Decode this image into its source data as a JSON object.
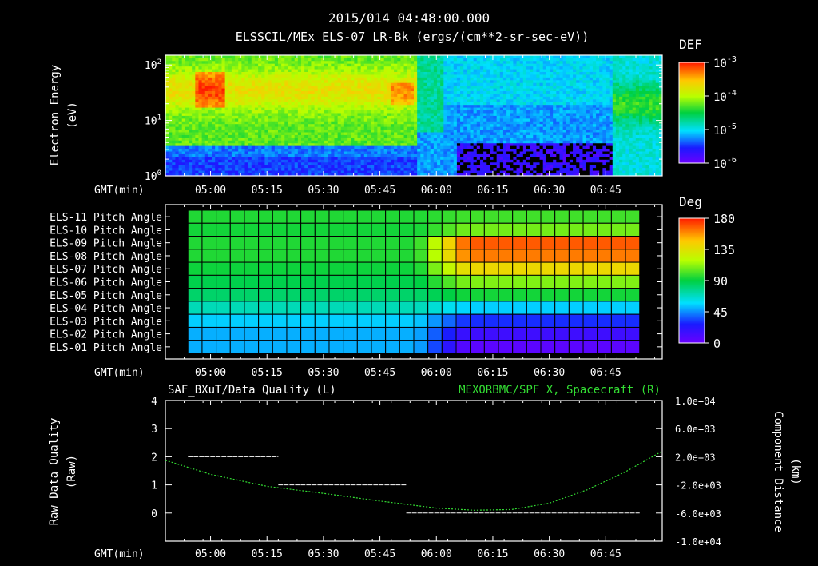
{
  "header": {
    "timestamp": "2015/014 04:48:00.000",
    "title": "ELSSCIL/MEx ELS-07 LR-Bk  (ergs/(cm**2-sr-sec-eV))"
  },
  "time_axis": {
    "label": "GMT(min)",
    "tick_labels": [
      "05:00",
      "05:15",
      "05:30",
      "05:45",
      "06:00",
      "06:15",
      "06:30",
      "06:45"
    ],
    "tick_minutes": [
      300,
      315,
      330,
      345,
      360,
      375,
      390,
      405
    ],
    "range_minutes": [
      288,
      420
    ]
  },
  "chart_data": [
    {
      "type": "heatmap",
      "panel": "spectrogram",
      "ylabel": "Electron Energy (eV)",
      "ylabel_lines": [
        "Electron Energy",
        "(eV)"
      ],
      "yscale": "log",
      "ylim": [
        1,
        150
      ],
      "y_ticks": [
        {
          "base": "10",
          "exp": "0",
          "value": 1
        },
        {
          "base": "10",
          "exp": "1",
          "value": 10
        },
        {
          "base": "10",
          "exp": "2",
          "value": 100
        }
      ],
      "colorbar": {
        "title": "DEF",
        "scale": "log",
        "range": [
          1e-06,
          0.001
        ],
        "ticks": [
          {
            "base": "10",
            "exp": "-3"
          },
          {
            "base": "10",
            "exp": "-4"
          },
          {
            "base": "10",
            "exp": "-5"
          },
          {
            "base": "10",
            "exp": "-6"
          }
        ]
      }
    },
    {
      "type": "heatmap",
      "panel": "pitch_angle",
      "rows": [
        "ELS-11 Pitch Angle",
        "ELS-10 Pitch Angle",
        "ELS-09 Pitch Angle",
        "ELS-08 Pitch Angle",
        "ELS-07 Pitch Angle",
        "ELS-06 Pitch Angle",
        "ELS-05 Pitch Angle",
        "ELS-04 Pitch Angle",
        "ELS-03 Pitch Angle",
        "ELS-02 Pitch Angle",
        "ELS-01 Pitch Angle"
      ],
      "row_values_start": [
        95,
        93,
        95,
        95,
        92,
        88,
        83,
        70,
        55,
        50,
        50
      ],
      "row_values_end": [
        100,
        108,
        168,
        162,
        140,
        110,
        93,
        55,
        30,
        15,
        5
      ],
      "transition_minutes": [
        355,
        368
      ],
      "data_range_minutes": [
        294,
        414
      ],
      "colorbar": {
        "title": "Deg",
        "range": [
          0,
          180
        ],
        "ticks": [
          "180",
          "135",
          "90",
          "45",
          "0"
        ],
        "tick_values": [
          180,
          135,
          90,
          45,
          0
        ]
      }
    },
    {
      "type": "line",
      "panel": "data_quality",
      "left_title": "SAF_BXuT/Data Quality (L)",
      "right_title": "MEXORBMC/SPF X, Spacecraft (R)",
      "ylabel_left": "Raw Data Quality (Raw)",
      "ylabel_left_lines": [
        "Raw Data Quality",
        "(Raw)"
      ],
      "ylabel_right": "Component Distance (km)",
      "ylabel_right_lines": [
        "Component Distance",
        "(km)"
      ],
      "ylim_left": [
        -1,
        4
      ],
      "y_ticks_left": [
        "4",
        "3",
        "2",
        "1",
        "0"
      ],
      "y_tick_values_left": [
        4,
        3,
        2,
        1,
        0
      ],
      "ylim_right": [
        -10000,
        10000
      ],
      "y_ticks_right": [
        "1.0e+04",
        "6.0e+03",
        "2.0e+03",
        "-2.0e+03",
        "-6.0e+03",
        "-1.0e+04"
      ],
      "y_tick_values_right": [
        10000,
        6000,
        2000,
        -2000,
        -6000,
        -10000
      ],
      "quality_segments": [
        {
          "x0": 294,
          "x1": 318,
          "y": 2
        },
        {
          "x0": 318,
          "x1": 352,
          "y": 1
        },
        {
          "x0": 352,
          "x1": 414,
          "y": 0
        }
      ],
      "spacecraft_x": {
        "x": [
          288,
          300,
          315,
          330,
          345,
          360,
          370,
          380,
          390,
          400,
          410,
          420
        ],
        "y": [
          1500,
          -500,
          -2200,
          -3200,
          -4300,
          -5300,
          -5600,
          -5500,
          -4600,
          -2700,
          -200,
          2800
        ]
      }
    }
  ],
  "colors": {
    "background": "#000000",
    "axes": "#ffffff",
    "spacecraft_line": "#33dd33",
    "quality_line": "#ffffff",
    "right_title": "#33dd33"
  }
}
